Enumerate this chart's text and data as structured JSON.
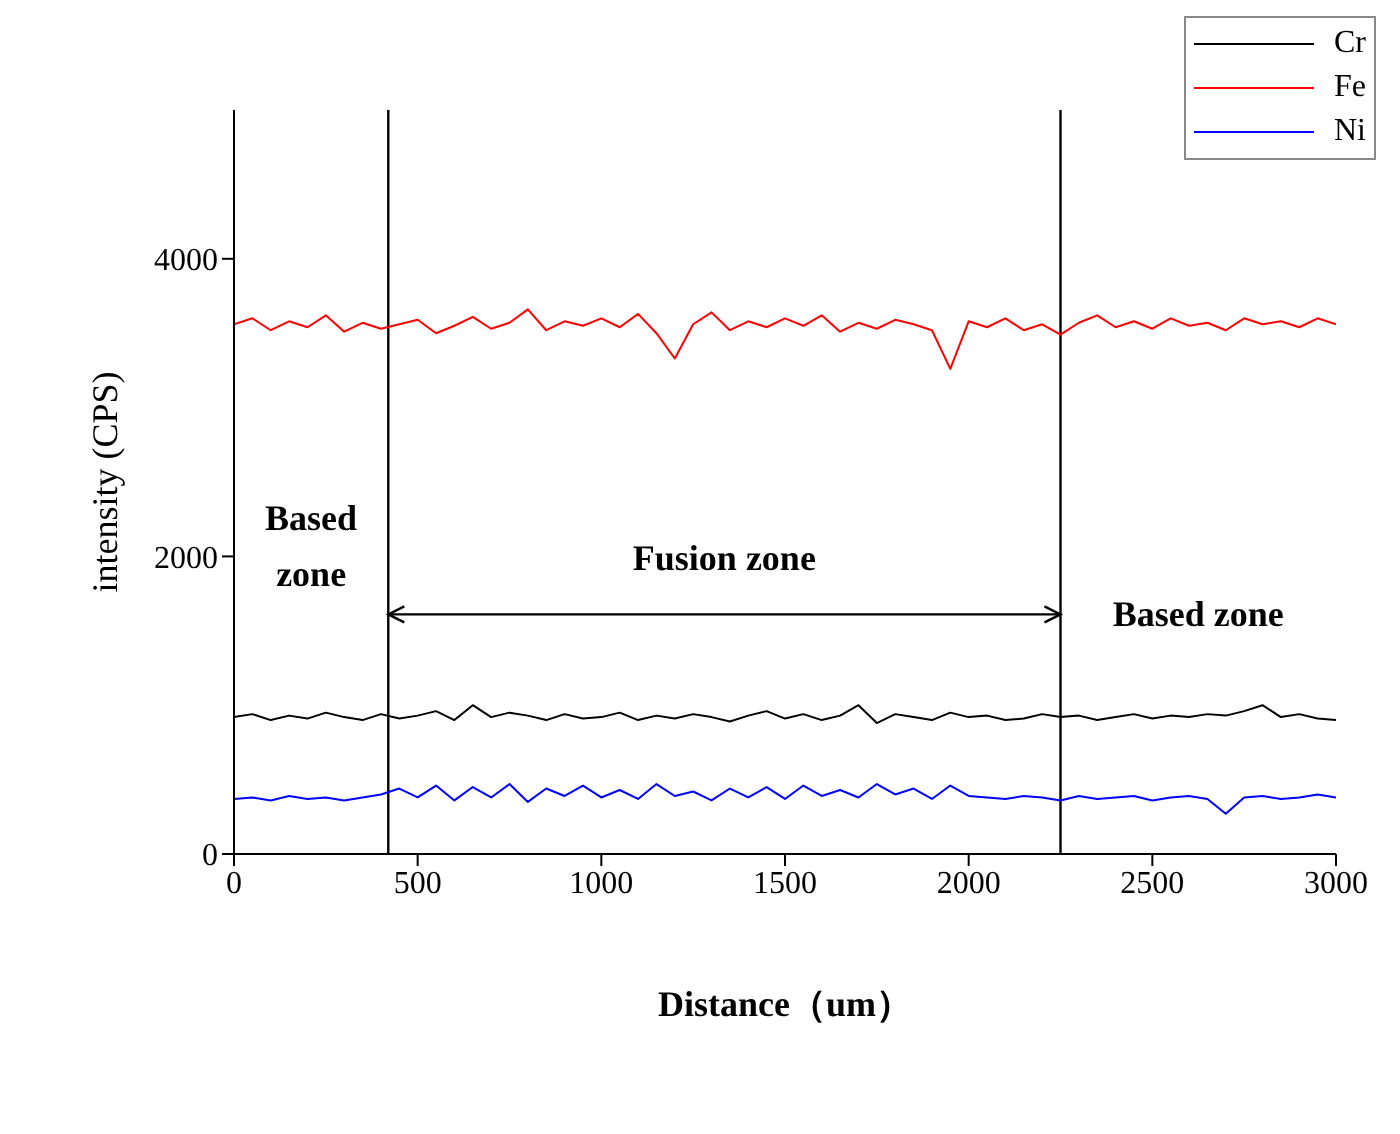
{
  "chart_data": {
    "type": "line",
    "xlabel": "Distance（um）",
    "ylabel": "intensity (CPS)",
    "x": [
      0,
      50,
      100,
      150,
      200,
      250,
      300,
      350,
      400,
      450,
      500,
      550,
      600,
      650,
      700,
      750,
      800,
      850,
      900,
      950,
      1000,
      1050,
      1100,
      1150,
      1200,
      1250,
      1300,
      1350,
      1400,
      1450,
      1500,
      1550,
      1600,
      1650,
      1700,
      1750,
      1800,
      1850,
      1900,
      1950,
      2000,
      2050,
      2100,
      2150,
      2200,
      2250,
      2300,
      2350,
      2400,
      2450,
      2500,
      2550,
      2600,
      2650,
      2700,
      2750,
      2800,
      2850,
      2900,
      2950,
      3000
    ],
    "series": [
      {
        "name": "Cr",
        "color": "#000000",
        "values": [
          920,
          940,
          900,
          930,
          910,
          950,
          920,
          900,
          940,
          910,
          930,
          960,
          900,
          1000,
          920,
          950,
          930,
          900,
          940,
          910,
          920,
          950,
          900,
          930,
          910,
          940,
          920,
          890,
          930,
          960,
          910,
          940,
          900,
          930,
          1000,
          880,
          940,
          920,
          900,
          950,
          920,
          930,
          900,
          910,
          940,
          920,
          930,
          900,
          920,
          940,
          910,
          930,
          920,
          940,
          930,
          960,
          1000,
          920,
          940,
          910,
          900
        ]
      },
      {
        "name": "Fe",
        "color": "#ff0000",
        "values": [
          3560,
          3600,
          3520,
          3580,
          3540,
          3620,
          3510,
          3570,
          3530,
          3560,
          3590,
          3500,
          3550,
          3610,
          3530,
          3570,
          3660,
          3520,
          3580,
          3550,
          3600,
          3540,
          3630,
          3500,
          3330,
          3560,
          3640,
          3520,
          3580,
          3540,
          3600,
          3550,
          3620,
          3510,
          3570,
          3530,
          3590,
          3560,
          3520,
          3260,
          3580,
          3540,
          3600,
          3520,
          3560,
          3490,
          3570,
          3620,
          3540,
          3580,
          3530,
          3600,
          3550,
          3570,
          3520,
          3600,
          3560,
          3580,
          3540,
          3600,
          3560
        ]
      },
      {
        "name": "Ni",
        "color": "#0000ff",
        "values": [
          370,
          380,
          360,
          390,
          370,
          380,
          360,
          380,
          400,
          440,
          380,
          460,
          360,
          450,
          380,
          470,
          350,
          440,
          390,
          460,
          380,
          430,
          370,
          470,
          390,
          420,
          360,
          440,
          380,
          450,
          370,
          460,
          390,
          430,
          380,
          470,
          400,
          440,
          370,
          460,
          390,
          380,
          370,
          390,
          380,
          360,
          390,
          370,
          380,
          390,
          360,
          380,
          390,
          370,
          270,
          380,
          390,
          370,
          380,
          400,
          380
        ]
      }
    ],
    "xlim": [
      0,
      3000
    ],
    "xticks": [
      0,
      500,
      1000,
      1500,
      2000,
      2500,
      3000
    ],
    "ylim": [
      0,
      5000
    ],
    "yticks": [
      0,
      2000,
      4000
    ],
    "ref_lines": [
      {
        "axis": "x",
        "value": 420,
        "color": "#000000"
      },
      {
        "axis": "x",
        "value": 2250,
        "color": "#000000"
      }
    ],
    "annotations": [
      "Based zone",
      "Fusion zone",
      "Based zone"
    ],
    "legend": "top right",
    "marker": "none",
    "line_style": "solid"
  }
}
